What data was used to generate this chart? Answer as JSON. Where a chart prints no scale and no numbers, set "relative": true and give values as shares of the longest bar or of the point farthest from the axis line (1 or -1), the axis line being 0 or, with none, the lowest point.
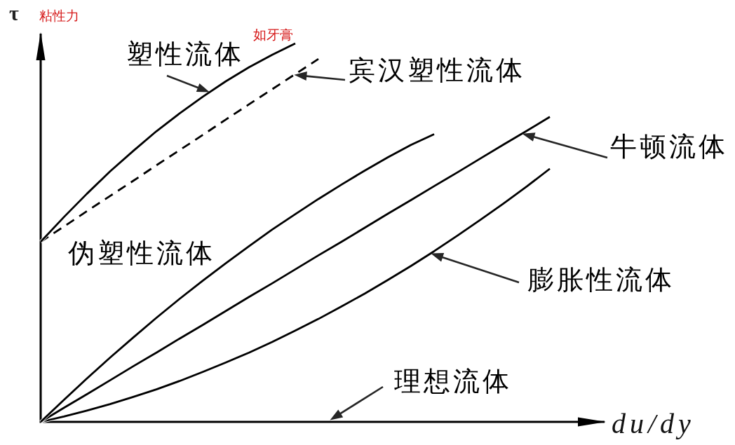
{
  "chart_data": {
    "type": "line",
    "relative": true,
    "xlabel": "du/dy",
    "ylabel": "τ",
    "annotations": [
      "粘性力",
      "如牙膏"
    ],
    "categories": [
      null,
      null,
      null,
      null,
      null,
      null,
      null,
      null,
      null,
      null,
      null,
      null,
      null,
      null,
      null,
      null,
      null,
      null,
      null,
      null,
      null,
      null,
      null,
      null
    ],
    "series": [
      {
        "name": "塑性流体",
        "color": "#000000",
        "values": [
          0.476,
          0.541,
          0.603,
          0.662,
          0.716,
          0.768,
          0.815,
          0.859,
          0.9,
          0.937,
          0.97,
          1,
          null,
          null,
          null,
          null,
          null,
          null,
          null,
          null,
          null,
          null,
          null,
          null
        ]
      },
      {
        "name": "宾汉塑性流体",
        "color": "#000000",
        "line_style": "dashed",
        "values": [
          0.476,
          0.516,
          0.557,
          0.597,
          0.637,
          0.678,
          0.718,
          0.758,
          0.799,
          0.839,
          0.879,
          0.919,
          0.959,
          null,
          null,
          null,
          null,
          null,
          null,
          null,
          null,
          null,
          null,
          null
        ]
      },
      {
        "name": "伪塑性流体",
        "color": "#000000",
        "values": [
          0,
          0.058,
          0.115,
          0.17,
          0.223,
          0.275,
          0.325,
          0.373,
          0.419,
          0.464,
          0.508,
          0.549,
          0.589,
          0.627,
          0.664,
          0.699,
          0.732,
          0.76,
          null,
          null,
          null,
          null,
          null,
          null
        ]
      },
      {
        "name": "牛顿流体",
        "color": "#000000",
        "values": [
          0,
          0.037,
          0.073,
          0.11,
          0.147,
          0.183,
          0.22,
          0.256,
          0.293,
          0.33,
          0.366,
          0.403,
          0.44,
          0.476,
          0.513,
          0.55,
          0.586,
          0.623,
          0.659,
          0.696,
          0.733,
          0.769,
          0.806,
          null
        ]
      },
      {
        "name": "膨胀性流体",
        "color": "#000000",
        "values": [
          0,
          0.014,
          0.03,
          0.047,
          0.066,
          0.086,
          0.108,
          0.132,
          0.157,
          0.183,
          0.211,
          0.241,
          0.272,
          0.305,
          0.339,
          0.375,
          0.412,
          0.451,
          0.492,
          0.534,
          0.577,
          0.622,
          0.669,
          null
        ]
      },
      {
        "name": "理想流体",
        "color": "#000000",
        "values": [
          0,
          0,
          0,
          0,
          0,
          0,
          0,
          0,
          0,
          0,
          0,
          0,
          0,
          0,
          0,
          0,
          0,
          0,
          0,
          0,
          0,
          0,
          0,
          0
        ]
      }
    ]
  }
}
